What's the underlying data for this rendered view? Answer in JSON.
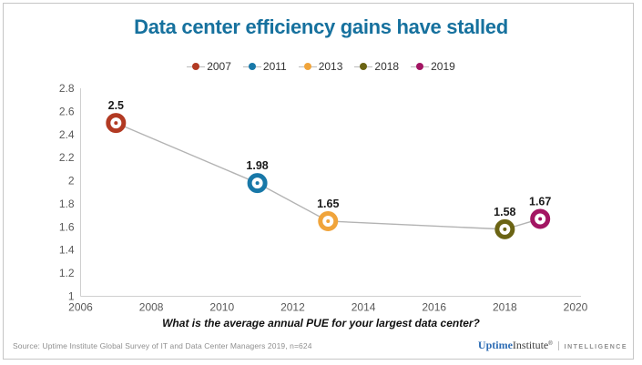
{
  "title": "Data center efficiency gains have stalled",
  "caption": "What is the average annual PUE for your largest data center?",
  "footer": {
    "source": "Source: Uptime Institute Global Survey of IT and Data Center Managers  2019, n=624",
    "brand_uptime": "Uptime",
    "brand_institute": "Institute",
    "brand_mark": "®",
    "brand_intelligence": "INTELLIGENCE"
  },
  "colors": {
    "title": "#16719e",
    "line": "#b3b3b3",
    "axis": "#cfcfcf",
    "tick_text": "#595959",
    "data_label": "#1a1a1a"
  },
  "chart_data": {
    "type": "line",
    "title": "Data center efficiency gains have stalled",
    "caption": "What is the average annual PUE for your largest data center?",
    "series": [
      {
        "name": "2007",
        "x": 2007,
        "value": 2.5,
        "label": "2.5",
        "color": "#b23a23"
      },
      {
        "name": "2011",
        "x": 2011,
        "value": 1.98,
        "label": "1.98",
        "color": "#1878a8"
      },
      {
        "name": "2013",
        "x": 2013,
        "value": 1.65,
        "label": "1.65",
        "color": "#f0a43b"
      },
      {
        "name": "2018",
        "x": 2018,
        "value": 1.58,
        "label": "1.58",
        "color": "#6b6414"
      },
      {
        "name": "2019",
        "x": 2019,
        "value": 1.67,
        "label": "1.67",
        "color": "#a31563"
      }
    ],
    "connected_line_color": "#b3b3b3",
    "xlim": [
      2006,
      2020
    ],
    "ylim": [
      1,
      2.8
    ],
    "x_ticks": [
      {
        "value": 2006,
        "label": "2006"
      },
      {
        "value": 2008,
        "label": "2008"
      },
      {
        "value": 2010,
        "label": "2010"
      },
      {
        "value": 2012,
        "label": "2012"
      },
      {
        "value": 2014,
        "label": "2014"
      },
      {
        "value": 2016,
        "label": "2016"
      },
      {
        "value": 2018,
        "label": "2018"
      },
      {
        "value": 2020,
        "label": "2020"
      }
    ],
    "y_ticks": [
      {
        "value": 1,
        "label": "1"
      },
      {
        "value": 1.2,
        "label": "1.2"
      },
      {
        "value": 1.4,
        "label": "1.4"
      },
      {
        "value": 1.6,
        "label": "1.6"
      },
      {
        "value": 1.8,
        "label": "1.8"
      },
      {
        "value": 2,
        "label": "2"
      },
      {
        "value": 2.2,
        "label": "2.2"
      },
      {
        "value": 2.4,
        "label": "2.4"
      },
      {
        "value": 2.6,
        "label": "2.6"
      },
      {
        "value": 2.8,
        "label": "2.8"
      }
    ],
    "grid": false,
    "legend_position": "top"
  }
}
